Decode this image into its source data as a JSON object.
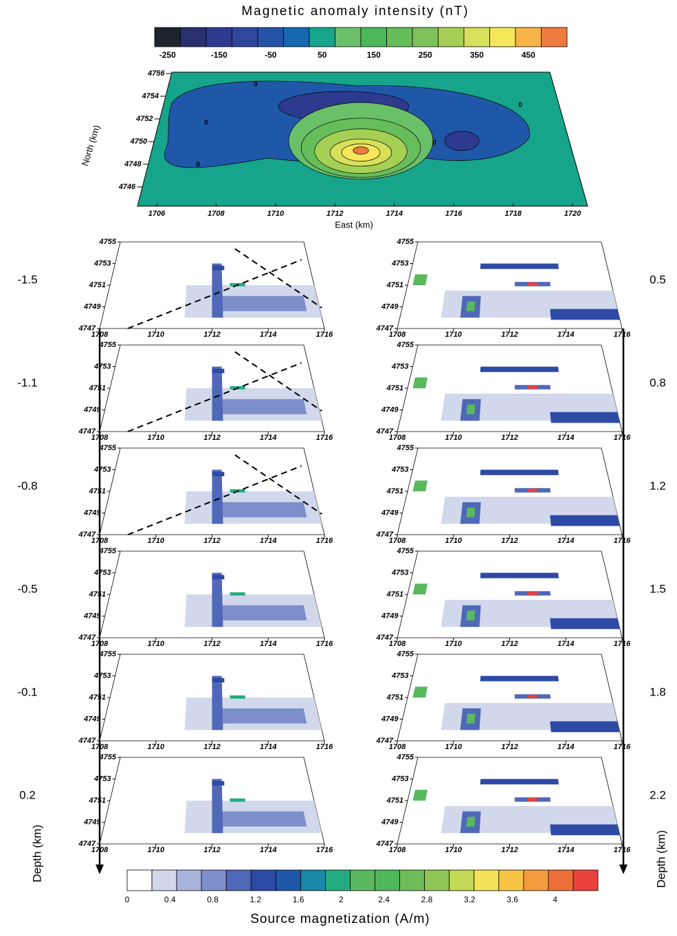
{
  "top_colorbar": {
    "title": "Magnetic anomaly intensity  (nT)",
    "colors": [
      "#1c2430",
      "#2a2f6e",
      "#2d3a8e",
      "#2f479e",
      "#2553a8",
      "#1469b0",
      "#16a58a",
      "#6abf69",
      "#4cb75a",
      "#66bd5a",
      "#7dc15b",
      "#a5cf55",
      "#d6e05a",
      "#f5e65a",
      "#f7b347",
      "#ef7c3e"
    ],
    "ticks": [
      -250,
      -150,
      -50,
      50,
      150,
      250,
      350,
      450
    ],
    "range": [
      -275,
      525
    ]
  },
  "top_map": {
    "y_label": "North (km)",
    "x_label": "East (km)",
    "yticks": [
      4756,
      4754,
      4752,
      4750,
      4748,
      4746
    ],
    "ylim": [
      4746,
      4756
    ],
    "xticks": [
      1706,
      1708,
      1710,
      1712,
      1714,
      1716,
      1718,
      1720
    ],
    "xlim": [
      1706,
      1720
    ],
    "contour_labels": [
      "0",
      "0",
      "0",
      "0",
      "0"
    ]
  },
  "slices": {
    "xticks": [
      1708,
      1710,
      1712,
      1714,
      1716
    ],
    "xlim": [
      1708,
      1716
    ],
    "yticks": [
      4755,
      4753,
      4751,
      4749,
      4747
    ],
    "ylim": [
      4747,
      4755
    ],
    "left_depths": [
      "-1.5",
      "-1.1",
      "-0.8",
      "-0.5",
      "-0.1",
      "0.2"
    ],
    "right_depths": [
      "0.5",
      "0.8",
      "1.2",
      "1.5",
      "1.8",
      "2.2"
    ],
    "depth_label": "Depth (km)"
  },
  "bottom_colorbar": {
    "title": "Source magnetization (A/m)",
    "colors": [
      "#ffffff",
      "#d2d8ec",
      "#a9b4dc",
      "#7d8fcb",
      "#4f68b8",
      "#2d4aa5",
      "#1f58a8",
      "#1788a8",
      "#22ac80",
      "#5ab85e",
      "#4fb75a",
      "#6dbd58",
      "#8fc655",
      "#c3d955",
      "#f4e356",
      "#f7c445",
      "#f39a3c",
      "#ee6e3a",
      "#e8423a"
    ],
    "ticks": [
      0,
      0.4,
      0.8,
      1.2,
      1.6,
      2,
      2.4,
      2.8,
      3.2,
      3.6,
      4
    ],
    "range": [
      0,
      4.4
    ]
  }
}
